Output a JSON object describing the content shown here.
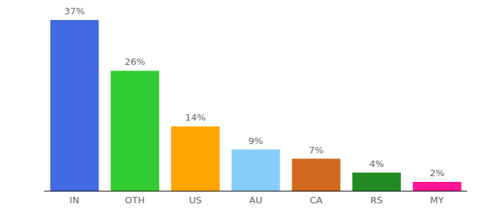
{
  "chart_data": {
    "type": "bar",
    "categories": [
      "IN",
      "OTH",
      "US",
      "AU",
      "CA",
      "RS",
      "MY"
    ],
    "values": [
      37,
      26,
      14,
      9,
      7,
      4,
      2
    ],
    "value_labels": [
      "37%",
      "26%",
      "14%",
      "9%",
      "7%",
      "4%",
      "2%"
    ],
    "colors": [
      "#4169e1",
      "#32cd32",
      "#ffa500",
      "#87cefa",
      "#d2691e",
      "#228b22",
      "#ff1493"
    ],
    "ylim": [
      0,
      37
    ],
    "data_labels": true,
    "tick_labels": "x",
    "grid": false
  }
}
